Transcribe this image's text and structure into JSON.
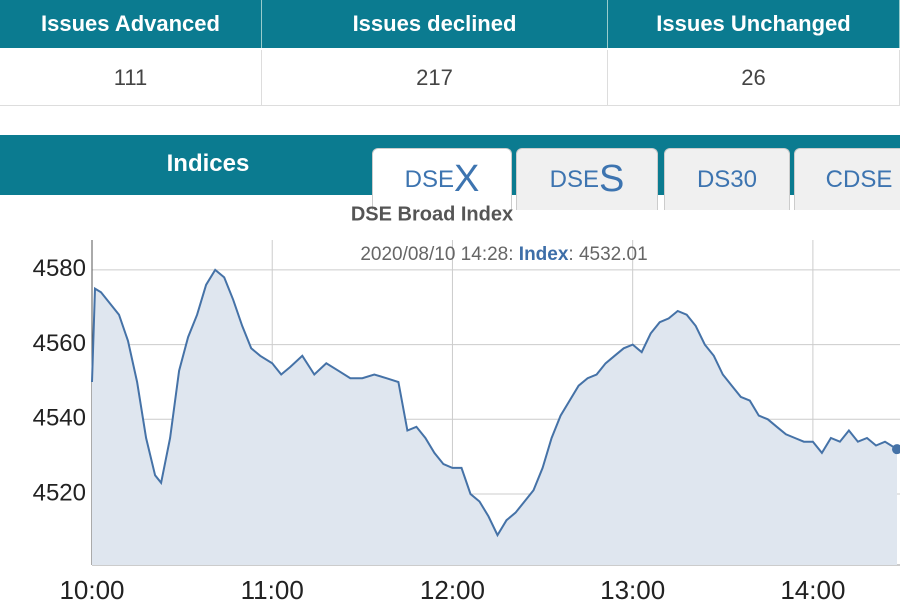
{
  "table": {
    "headers": [
      "Issues Advanced",
      "Issues declined",
      "Issues Unchanged"
    ],
    "values": [
      111,
      217,
      26
    ]
  },
  "tabs_bar": {
    "label": "Indices",
    "tabs": [
      {
        "prefix": "DSE",
        "suffix": "X",
        "active": true
      },
      {
        "prefix": "DSE",
        "suffix": "S",
        "active": false
      },
      {
        "text": "DS30",
        "active": false
      },
      {
        "text": "CDSE",
        "active": false
      }
    ]
  },
  "chart_data": {
    "type": "area",
    "title": "DSE Broad Index",
    "readout": {
      "time": "2020/08/10 14:28:",
      "label": "Index",
      "separator": ":",
      "value": 4532.01
    },
    "color": "#4572a7",
    "fill_color": "#dfe6ef",
    "grid": true,
    "x": [
      "10:00",
      "10:01",
      "10:03",
      "10:06",
      "10:09",
      "10:12",
      "10:15",
      "10:18",
      "10:21",
      "10:23",
      "10:26",
      "10:29",
      "10:32",
      "10:35",
      "10:38",
      "10:41",
      "10:44",
      "10:47",
      "10:50",
      "10:53",
      "10:56",
      "11:00",
      "11:03",
      "11:06",
      "11:10",
      "11:14",
      "11:18",
      "11:22",
      "11:26",
      "11:30",
      "11:34",
      "11:38",
      "11:42",
      "11:45",
      "11:48",
      "11:51",
      "11:54",
      "11:57",
      "12:00",
      "12:03",
      "12:06",
      "12:09",
      "12:12",
      "12:15",
      "12:18",
      "12:21",
      "12:24",
      "12:27",
      "12:30",
      "12:33",
      "12:36",
      "12:39",
      "12:42",
      "12:45",
      "12:48",
      "12:51",
      "12:54",
      "12:57",
      "13:00",
      "13:03",
      "13:06",
      "13:09",
      "13:12",
      "13:15",
      "13:18",
      "13:21",
      "13:24",
      "13:27",
      "13:30",
      "13:33",
      "13:36",
      "13:39",
      "13:42",
      "13:45",
      "13:48",
      "13:51",
      "13:54",
      "13:57",
      "14:00",
      "14:03",
      "14:06",
      "14:09",
      "14:12",
      "14:15",
      "14:18",
      "14:21",
      "14:24",
      "14:28"
    ],
    "values": [
      4550,
      4575,
      4574,
      4571,
      4568,
      4561,
      4550,
      4535,
      4525,
      4523,
      4535,
      4553,
      4562,
      4568,
      4576,
      4580,
      4578,
      4572,
      4565,
      4559,
      4557,
      4555,
      4552,
      4554,
      4557,
      4552,
      4555,
      4553,
      4551,
      4551,
      4552,
      4551,
      4550,
      4537,
      4538,
      4535,
      4531,
      4528,
      4527,
      4527,
      4520,
      4518,
      4514,
      4509,
      4513,
      4515,
      4518,
      4521,
      4527,
      4535,
      4541,
      4545,
      4549,
      4551,
      4552,
      4555,
      4557,
      4559,
      4560,
      4558,
      4563,
      4566,
      4567,
      4569,
      4568,
      4565,
      4560,
      4557,
      4552,
      4549,
      4546,
      4545,
      4541,
      4540,
      4538,
      4536,
      4535,
      4534,
      4534,
      4531,
      4535,
      4534,
      4537,
      4534,
      4535,
      4533,
      4534,
      4532.01
    ],
    "xlim": [
      "10:00",
      "14:29"
    ],
    "xticks": [
      "10:00",
      "11:00",
      "12:00",
      "13:00",
      "14:00"
    ],
    "ylim": [
      4501,
      4588
    ],
    "yticks": [
      4520,
      4540,
      4560,
      4580
    ]
  }
}
